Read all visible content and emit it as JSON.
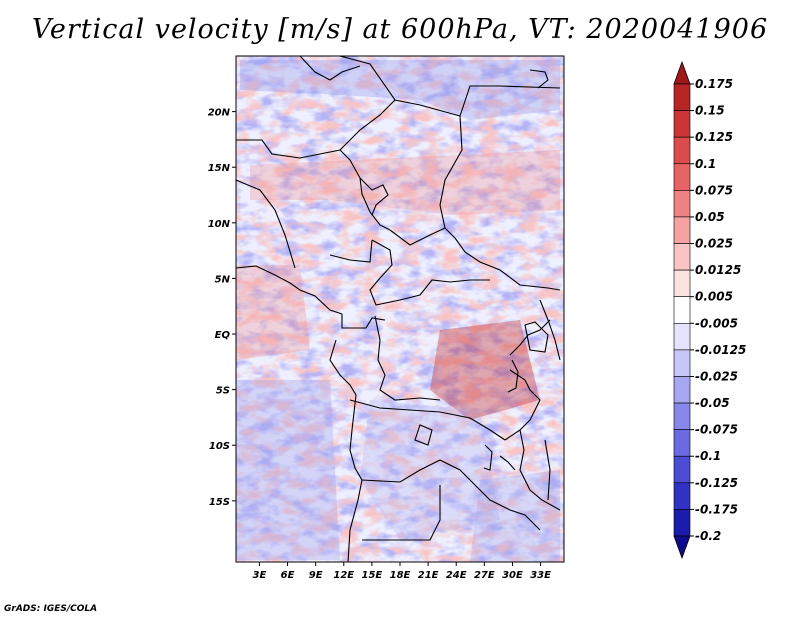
{
  "title": "Vertical velocity [m/s] at 600hPa, VT: 2020041906",
  "credit": "GrADS: IGES/COLA",
  "map": {
    "lat_labels": [
      {
        "label": "20N",
        "lat": 20
      },
      {
        "label": "15N",
        "lat": 15
      },
      {
        "label": "10N",
        "lat": 10
      },
      {
        "label": "5N",
        "lat": 5
      },
      {
        "label": "EQ",
        "lat": 0
      },
      {
        "label": "5S",
        "lat": -5
      },
      {
        "label": "10S",
        "lat": -10
      },
      {
        "label": "15S",
        "lat": -15
      }
    ],
    "lon_labels": [
      {
        "label": "3E",
        "lon": 3
      },
      {
        "label": "6E",
        "lon": 6
      },
      {
        "label": "9E",
        "lon": 9
      },
      {
        "label": "12E",
        "lon": 12
      },
      {
        "label": "15E",
        "lon": 15
      },
      {
        "label": "18E",
        "lon": 18
      },
      {
        "label": "21E",
        "lon": 21
      },
      {
        "label": "24E",
        "lon": 24
      },
      {
        "label": "27E",
        "lon": 27
      },
      {
        "label": "30E",
        "lon": 30
      },
      {
        "label": "33E",
        "lon": 33
      }
    ],
    "lon_range": [
      0.5,
      35.5
    ],
    "lat_range": [
      -20.5,
      25
    ]
  },
  "colorbar": {
    "labels": [
      "0.175",
      "0.15",
      "0.125",
      "0.1",
      "0.075",
      "0.05",
      "0.025",
      "0.0125",
      "0.005",
      "-0.005",
      "-0.0125",
      "-0.025",
      "-0.05",
      "-0.075",
      "-0.1",
      "-0.125",
      "-0.175",
      "-0.2"
    ],
    "colors": [
      "#a01818",
      "#b82525",
      "#cc3535",
      "#dc4c4c",
      "#e66464",
      "#ef8282",
      "#f6a2a2",
      "#fac4c4",
      "#fde2e2",
      "#ffffff",
      "#e4e4fc",
      "#c6c6f8",
      "#a8a8f2",
      "#8888ea",
      "#6a6ae2",
      "#4c4cd4",
      "#3232c2",
      "#1c1cac",
      "#0c0c8c"
    ]
  }
}
